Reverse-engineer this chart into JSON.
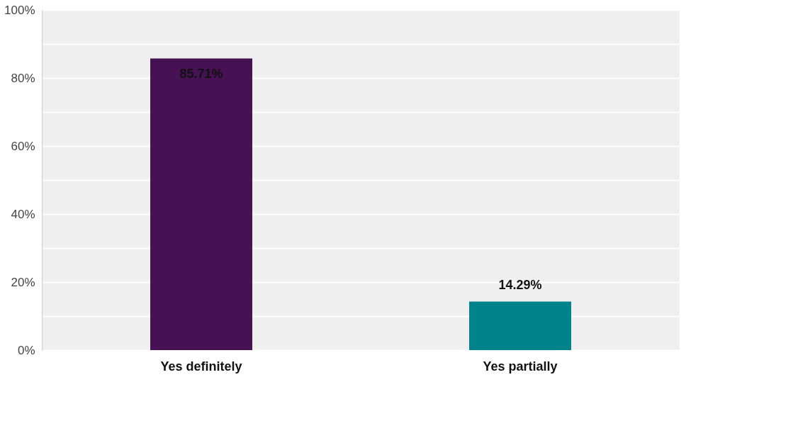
{
  "chart_data": {
    "type": "bar",
    "categories": [
      "Yes definitely",
      "Yes partially"
    ],
    "values": [
      85.71,
      14.29
    ],
    "colors": [
      "#461254",
      "#00838a"
    ],
    "value_labels": [
      "85.71%",
      "14.29%"
    ],
    "ylim": [
      0,
      100
    ],
    "yticks": [
      {
        "value": 0,
        "label": "0%"
      },
      {
        "value": 10,
        "label": null
      },
      {
        "value": 20,
        "label": "20%"
      },
      {
        "value": 30,
        "label": null
      },
      {
        "value": 40,
        "label": "40%"
      },
      {
        "value": 50,
        "label": null
      },
      {
        "value": 60,
        "label": "60%"
      },
      {
        "value": 70,
        "label": null
      },
      {
        "value": 80,
        "label": "80%"
      },
      {
        "value": 90,
        "label": null
      },
      {
        "value": 100,
        "label": "100%"
      }
    ],
    "grid": true
  }
}
